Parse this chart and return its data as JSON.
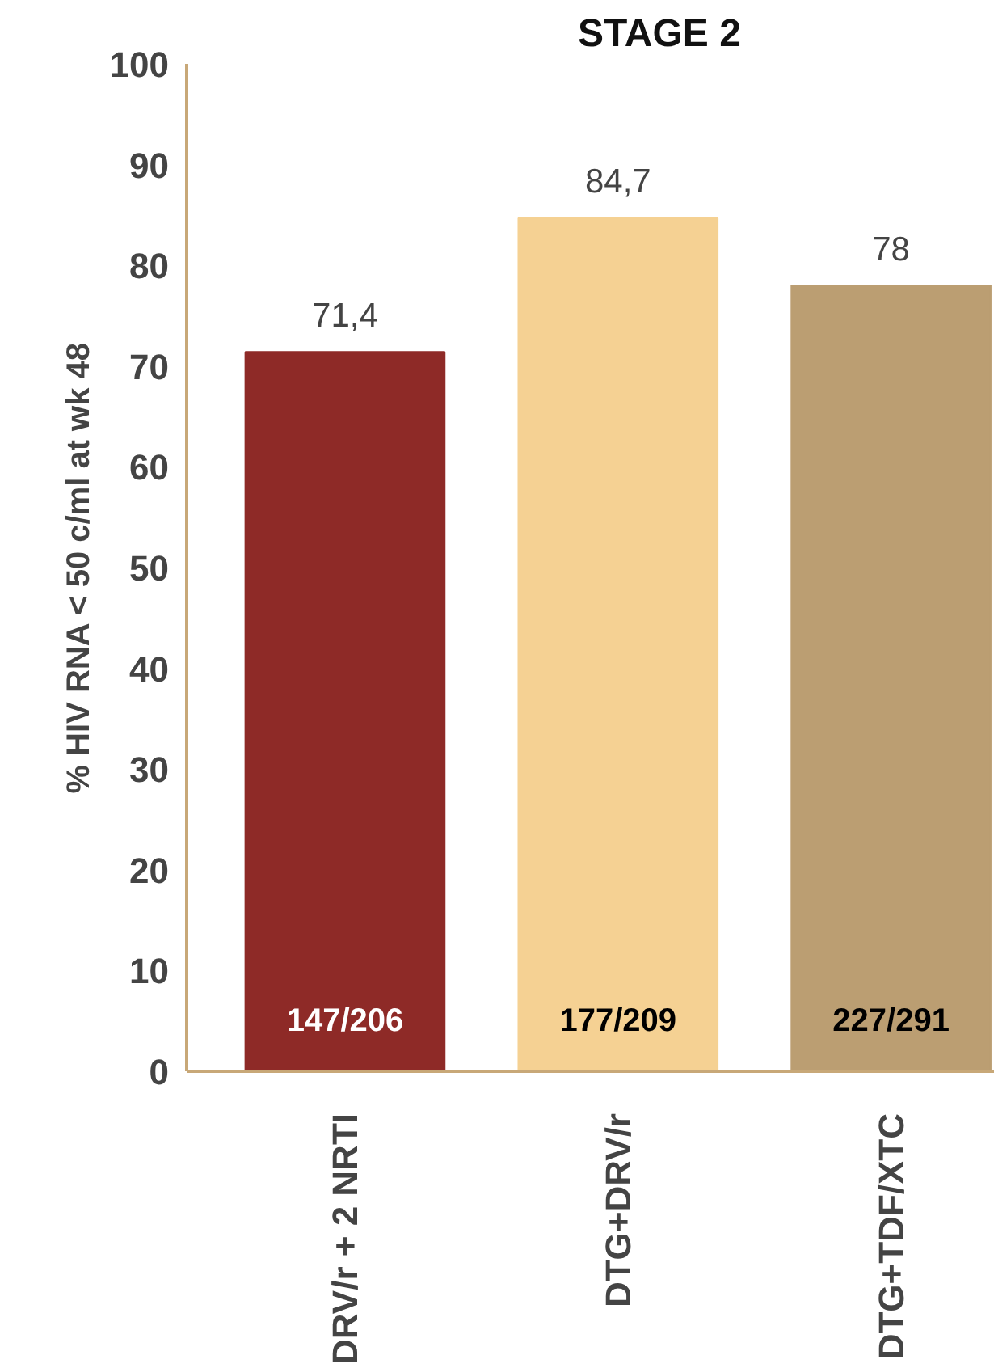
{
  "chart_data": {
    "type": "bar",
    "title": "STAGE 2",
    "ylabel": "% HIV RNA < 50 c/ml at wk 48",
    "categories": [
      "DRV/r + 2 NRTI",
      "DTG+DRV/r",
      "DTG+TDF/XTC"
    ],
    "values": [
      71.4,
      84.7,
      78
    ],
    "colors": [
      "#8e2a27",
      "#f5d193",
      "#bb9e72"
    ],
    "value_labels": [
      "71,4",
      "84,7",
      "78"
    ],
    "ylim": [
      0,
      100
    ],
    "yticks": [
      0,
      10,
      20,
      30,
      40,
      50,
      60,
      70,
      80,
      90,
      100
    ],
    "grid": false,
    "annotations": [
      "147/206",
      "177/209",
      "227/291"
    ]
  }
}
